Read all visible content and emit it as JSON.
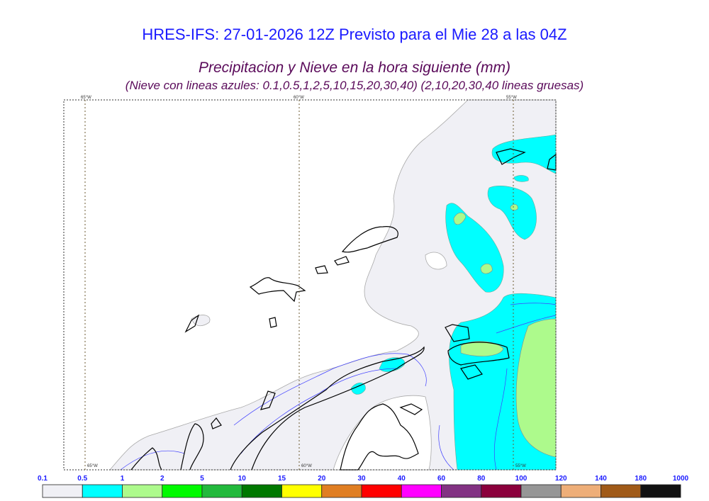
{
  "title": "HRES-IFS: 27-01-2026 12Z Previsto para el Mie 28 a las 04Z",
  "subtitle": "Precipitacion y Nieve en la hora siguiente (mm)",
  "subtitle2": "(Nieve con lineas azules: 0.1,0.5,1,2,5,10,15,20,30,40)  (2,10,20,30,40 lineas gruesas)",
  "longitude_labels": [
    "65°W",
    "60°W",
    "55°W"
  ],
  "colorbar": {
    "labels": [
      "0.1",
      "0.5",
      "1",
      "2",
      "5",
      "10",
      "15",
      "20",
      "30",
      "40",
      "60",
      "80",
      "100",
      "120",
      "140",
      "180",
      "1000"
    ],
    "colors": [
      "#f0f0f5",
      "#00ffff",
      "#adfa8c",
      "#00fa00",
      "#22b93c",
      "#007800",
      "#ffff00",
      "#e07e22",
      "#ff0000",
      "#ff00ff",
      "#823283",
      "#8b003c",
      "#969696",
      "#eeae78",
      "#a05a18",
      "#111111"
    ]
  }
}
